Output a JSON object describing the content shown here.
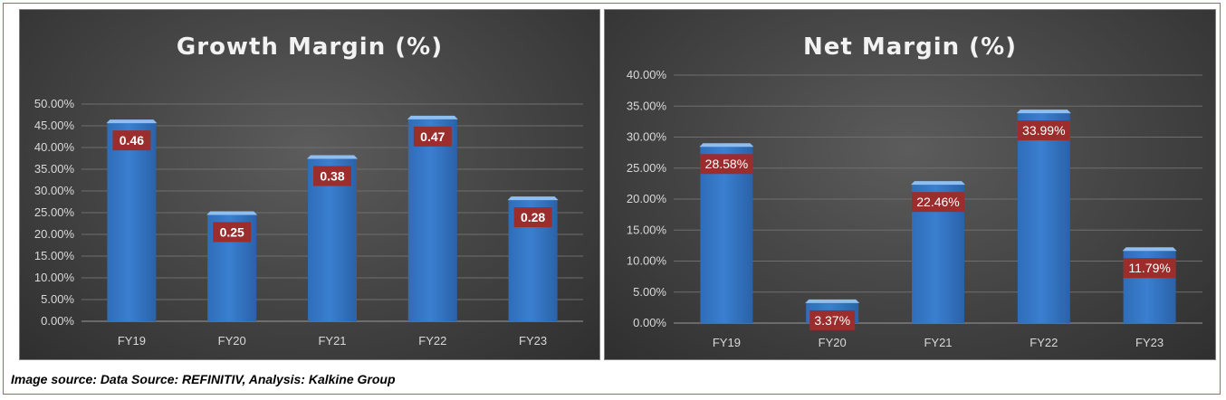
{
  "footer": {
    "caption": "Image source: Data Source: REFINITIV, Analysis: Kalkine Group"
  },
  "colors": {
    "bar": "#3a7fd0",
    "bar_top": "#8fbff0",
    "label_bg": "#9b2d2d",
    "grid": "#6e6e6e"
  },
  "chart_data": [
    {
      "type": "bar",
      "title": "Growth Margin (%)",
      "categories": [
        "FY19",
        "FY20",
        "FY21",
        "FY22",
        "FY23"
      ],
      "values": [
        45.8,
        24.7,
        37.6,
        46.7,
        28.1
      ],
      "data_labels": [
        "0.46",
        "0.25",
        "0.38",
        "0.47",
        "0.28"
      ],
      "y_ticks": [
        "0.00%",
        "5.00%",
        "10.00%",
        "15.00%",
        "20.00%",
        "25.00%",
        "30.00%",
        "35.00%",
        "40.00%",
        "45.00%",
        "50.00%"
      ],
      "ylim": [
        0,
        50
      ],
      "grid": true,
      "legend": "none"
    },
    {
      "type": "bar",
      "title": "Net Margin (%)",
      "categories": [
        "FY19",
        "FY20",
        "FY21",
        "FY22",
        "FY23"
      ],
      "values": [
        28.58,
        3.37,
        22.46,
        33.99,
        11.79
      ],
      "data_labels": [
        "28.58%",
        "3.37%",
        "22.46%",
        "33.99%",
        "11.79%"
      ],
      "y_ticks": [
        "0.00%",
        "5.00%",
        "10.00%",
        "15.00%",
        "20.00%",
        "25.00%",
        "30.00%",
        "35.00%",
        "40.00%"
      ],
      "ylim": [
        0,
        40
      ],
      "grid": true,
      "legend": "none"
    }
  ]
}
